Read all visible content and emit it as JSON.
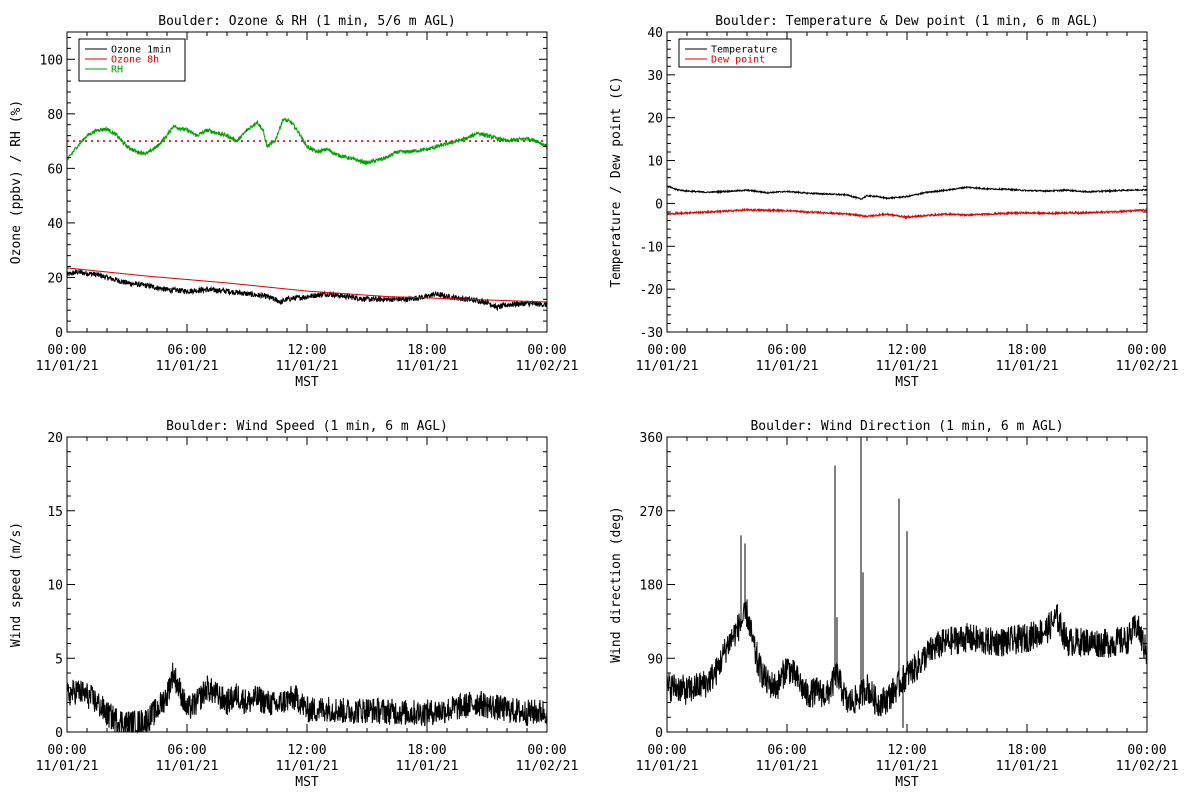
{
  "chart_data": [
    {
      "type": "line",
      "title": "Boulder: Ozone & RH (1 min, 5/6 m AGL)",
      "xlabel": "MST",
      "ylabel": "Ozone (ppbv) / RH (%)",
      "xlim": [
        0,
        24
      ],
      "ylim": [
        0,
        110
      ],
      "yticks": [
        0,
        20,
        40,
        60,
        80,
        100
      ],
      "xtick_labels": [
        [
          "00:00",
          "11/01/21"
        ],
        [
          "06:00",
          "11/01/21"
        ],
        [
          "12:00",
          "11/01/21"
        ],
        [
          "18:00",
          "11/01/21"
        ],
        [
          "00:00",
          "11/02/21"
        ]
      ],
      "legend": {
        "position": "top-left",
        "entries": [
          "Ozone 1min",
          "Ozone 8h",
          "RH"
        ]
      },
      "reference_line": {
        "y": 70,
        "style": "dotted",
        "color": "#e00000"
      },
      "series": [
        {
          "name": "Ozone 1min",
          "color": "#000000",
          "noise": 1.0,
          "points": [
            [
              0,
              21
            ],
            [
              0.5,
              22
            ],
            [
              1,
              21.5
            ],
            [
              1.5,
              21
            ],
            [
              2,
              20
            ],
            [
              3,
              18
            ],
            [
              4,
              17
            ],
            [
              5,
              15.5
            ],
            [
              6,
              15
            ],
            [
              7,
              15.5
            ],
            [
              8,
              15
            ],
            [
              9,
              14
            ],
            [
              10,
              13
            ],
            [
              10.7,
              11
            ],
            [
              11,
              12
            ],
            [
              12,
              13
            ],
            [
              13,
              14
            ],
            [
              14,
              13
            ],
            [
              15,
              12
            ],
            [
              16,
              12
            ],
            [
              17,
              12
            ],
            [
              18,
              13
            ],
            [
              18.4,
              14
            ],
            [
              19,
              13
            ],
            [
              20,
              12
            ],
            [
              21,
              11
            ],
            [
              21.5,
              9
            ],
            [
              22,
              10
            ],
            [
              23,
              10.5
            ],
            [
              24,
              10
            ]
          ]
        },
        {
          "name": "Ozone 8h",
          "color": "#e00000",
          "noise": 0,
          "points": [
            [
              0,
              23.5
            ],
            [
              4,
              20.5
            ],
            [
              8,
              18
            ],
            [
              12,
              15
            ],
            [
              16,
              13
            ],
            [
              20,
              12
            ],
            [
              24,
              11
            ]
          ]
        },
        {
          "name": "RH",
          "color": "#00a000",
          "noise": 0.7,
          "points": [
            [
              0,
              63
            ],
            [
              0.5,
              68
            ],
            [
              1,
              72
            ],
            [
              1.5,
              74
            ],
            [
              2,
              74.5
            ],
            [
              2.5,
              72
            ],
            [
              3,
              68
            ],
            [
              3.5,
              66
            ],
            [
              4,
              65.5
            ],
            [
              4.5,
              68
            ],
            [
              5,
              72
            ],
            [
              5.3,
              75.5
            ],
            [
              6,
              74
            ],
            [
              6.5,
              72
            ],
            [
              7,
              74
            ],
            [
              8,
              72
            ],
            [
              8.5,
              70
            ],
            [
              9,
              74
            ],
            [
              9.5,
              77
            ],
            [
              9.8,
              74
            ],
            [
              10,
              68
            ],
            [
              10.4,
              70
            ],
            [
              10.8,
              78
            ],
            [
              11.2,
              77
            ],
            [
              11.6,
              73
            ],
            [
              12,
              68
            ],
            [
              12.5,
              66
            ],
            [
              13,
              67
            ],
            [
              13.5,
              65
            ],
            [
              14,
              64
            ],
            [
              14.5,
              63
            ],
            [
              15,
              62
            ],
            [
              15.5,
              63
            ],
            [
              16,
              64
            ],
            [
              16.5,
              66
            ],
            [
              17,
              66
            ],
            [
              18,
              67
            ],
            [
              18.5,
              68
            ],
            [
              19,
              69
            ],
            [
              20,
              71
            ],
            [
              20.5,
              73
            ],
            [
              21,
              72
            ],
            [
              22,
              70
            ],
            [
              23,
              71
            ],
            [
              23.5,
              70
            ],
            [
              24,
              68
            ]
          ]
        }
      ]
    },
    {
      "type": "line",
      "title": "Boulder: Temperature & Dew point (1 min, 6 m AGL)",
      "xlabel": "MST",
      "ylabel": "Temperature / Dew point (C)",
      "xlim": [
        0,
        24
      ],
      "ylim": [
        -30,
        40
      ],
      "yticks": [
        -30,
        -20,
        -10,
        0,
        10,
        20,
        30,
        40
      ],
      "xtick_labels": [
        [
          "00:00",
          "11/01/21"
        ],
        [
          "06:00",
          "11/01/21"
        ],
        [
          "12:00",
          "11/01/21"
        ],
        [
          "18:00",
          "11/01/21"
        ],
        [
          "00:00",
          "11/02/21"
        ]
      ],
      "legend": {
        "position": "top-left",
        "entries": [
          "Temperature",
          "Dew point"
        ]
      },
      "series": [
        {
          "name": "Temperature",
          "color": "#000000",
          "noise": 0.15,
          "points": [
            [
              0,
              4
            ],
            [
              0.5,
              3.2
            ],
            [
              1,
              2.9
            ],
            [
              2,
              2.6
            ],
            [
              3,
              2.8
            ],
            [
              4,
              3.1
            ],
            [
              5,
              2.5
            ],
            [
              6,
              2.8
            ],
            [
              7,
              2.4
            ],
            [
              8,
              2.2
            ],
            [
              9,
              2
            ],
            [
              9.7,
              1
            ],
            [
              10,
              1.8
            ],
            [
              10.5,
              1.6
            ],
            [
              11,
              1.2
            ],
            [
              12,
              1.6
            ],
            [
              13,
              2.6
            ],
            [
              14,
              3.1
            ],
            [
              15,
              3.8
            ],
            [
              16,
              3.4
            ],
            [
              17,
              3.3
            ],
            [
              18,
              3
            ],
            [
              19,
              2.9
            ],
            [
              20,
              3.1
            ],
            [
              21,
              2.7
            ],
            [
              22,
              2.9
            ],
            [
              23,
              3.1
            ],
            [
              24,
              3.2
            ]
          ]
        },
        {
          "name": "Dew point",
          "color": "#e00000",
          "noise": 0.2,
          "points": [
            [
              0,
              -2.5
            ],
            [
              1,
              -2.2
            ],
            [
              2,
              -2
            ],
            [
              3,
              -1.8
            ],
            [
              4,
              -1.5
            ],
            [
              5,
              -1.6
            ],
            [
              6,
              -1.7
            ],
            [
              7,
              -2
            ],
            [
              8,
              -2.2
            ],
            [
              9,
              -2.5
            ],
            [
              10,
              -3
            ],
            [
              11,
              -2.5
            ],
            [
              12,
              -3.2
            ],
            [
              13,
              -2.8
            ],
            [
              14,
              -2.5
            ],
            [
              15,
              -2.7
            ],
            [
              16,
              -2.5
            ],
            [
              17,
              -2.3
            ],
            [
              18,
              -2.2
            ],
            [
              19,
              -2.3
            ],
            [
              20,
              -2.2
            ],
            [
              21,
              -2.2
            ],
            [
              22,
              -2
            ],
            [
              23,
              -1.8
            ],
            [
              24,
              -1.5
            ]
          ]
        }
      ]
    },
    {
      "type": "line",
      "title": "Boulder: Wind Speed (1 min, 6 m AGL)",
      "xlabel": "MST",
      "ylabel": "Wind speed (m/s)",
      "xlim": [
        0,
        24
      ],
      "ylim": [
        0,
        20
      ],
      "yticks": [
        0,
        5,
        10,
        15,
        20
      ],
      "xtick_labels": [
        [
          "00:00",
          "11/01/21"
        ],
        [
          "06:00",
          "11/01/21"
        ],
        [
          "12:00",
          "11/01/21"
        ],
        [
          "18:00",
          "11/01/21"
        ],
        [
          "00:00",
          "11/02/21"
        ]
      ],
      "series": [
        {
          "name": "",
          "color": "#000000",
          "noise": 0.9,
          "points": [
            [
              0,
              2.5
            ],
            [
              0.5,
              2.8
            ],
            [
              1,
              2.5
            ],
            [
              1.5,
              2
            ],
            [
              2,
              1.2
            ],
            [
              2.5,
              0.8
            ],
            [
              3,
              0.6
            ],
            [
              3.5,
              0.6
            ],
            [
              4,
              0.8
            ],
            [
              4.5,
              1.5
            ],
            [
              5,
              2.5
            ],
            [
              5.3,
              4
            ],
            [
              5.6,
              3
            ],
            [
              6,
              1.5
            ],
            [
              6.5,
              2
            ],
            [
              7,
              3
            ],
            [
              7.5,
              2.5
            ],
            [
              8,
              2
            ],
            [
              8.5,
              2.5
            ],
            [
              9,
              2
            ],
            [
              9.5,
              2.3
            ],
            [
              10,
              2
            ],
            [
              10.5,
              1.8
            ],
            [
              11,
              2.2
            ],
            [
              11.5,
              2.3
            ],
            [
              12,
              1.5
            ],
            [
              12.5,
              1.5
            ],
            [
              13,
              1.6
            ],
            [
              14,
              1.4
            ],
            [
              15,
              1.5
            ],
            [
              16,
              1.4
            ],
            [
              17,
              1.3
            ],
            [
              18,
              1.3
            ],
            [
              19,
              1.5
            ],
            [
              20,
              1.8
            ],
            [
              20.5,
              2
            ],
            [
              21,
              1.8
            ],
            [
              22,
              1.5
            ],
            [
              23,
              1.3
            ],
            [
              24,
              1.4
            ]
          ]
        }
      ]
    },
    {
      "type": "line",
      "title": "Boulder: Wind Direction (1 min, 6 m AGL)",
      "xlabel": "MST",
      "ylabel": "Wind direction (deg)",
      "xlim": [
        0,
        24
      ],
      "ylim": [
        0,
        360
      ],
      "yticks": [
        0,
        90,
        180,
        270,
        360
      ],
      "xtick_labels": [
        [
          "00:00",
          "11/01/21"
        ],
        [
          "06:00",
          "11/01/21"
        ],
        [
          "12:00",
          "11/01/21"
        ],
        [
          "18:00",
          "11/01/21"
        ],
        [
          "00:00",
          "11/02/21"
        ]
      ],
      "spikes": [
        [
          3.7,
          240
        ],
        [
          3.9,
          230
        ],
        [
          4.5,
          110
        ],
        [
          8.4,
          325
        ],
        [
          8.5,
          140
        ],
        [
          9.7,
          360
        ],
        [
          9.8,
          195
        ],
        [
          11.6,
          285
        ],
        [
          12,
          245
        ],
        [
          11.8,
          5
        ]
      ],
      "series": [
        {
          "name": "",
          "color": "#000000",
          "noise": 18,
          "points": [
            [
              0,
              55
            ],
            [
              0.5,
              55
            ],
            [
              1,
              50
            ],
            [
              1.5,
              55
            ],
            [
              2,
              60
            ],
            [
              2.5,
              75
            ],
            [
              3,
              105
            ],
            [
              3.5,
              125
            ],
            [
              4,
              145
            ],
            [
              4.5,
              85
            ],
            [
              5,
              60
            ],
            [
              5.5,
              55
            ],
            [
              6,
              80
            ],
            [
              6.5,
              65
            ],
            [
              7,
              45
            ],
            [
              7.5,
              50
            ],
            [
              8,
              45
            ],
            [
              8.5,
              70
            ],
            [
              9,
              35
            ],
            [
              9.5,
              40
            ],
            [
              10,
              55
            ],
            [
              10.5,
              35
            ],
            [
              11,
              40
            ],
            [
              11.5,
              55
            ],
            [
              12,
              70
            ],
            [
              12.5,
              80
            ],
            [
              13,
              95
            ],
            [
              13.5,
              105
            ],
            [
              14,
              110
            ],
            [
              15,
              115
            ],
            [
              16,
              110
            ],
            [
              17,
              110
            ],
            [
              18,
              115
            ],
            [
              19,
              125
            ],
            [
              19.5,
              140
            ],
            [
              20,
              110
            ],
            [
              21,
              110
            ],
            [
              22,
              108
            ],
            [
              23,
              112
            ],
            [
              23.5,
              130
            ],
            [
              24,
              95
            ]
          ]
        }
      ]
    }
  ]
}
